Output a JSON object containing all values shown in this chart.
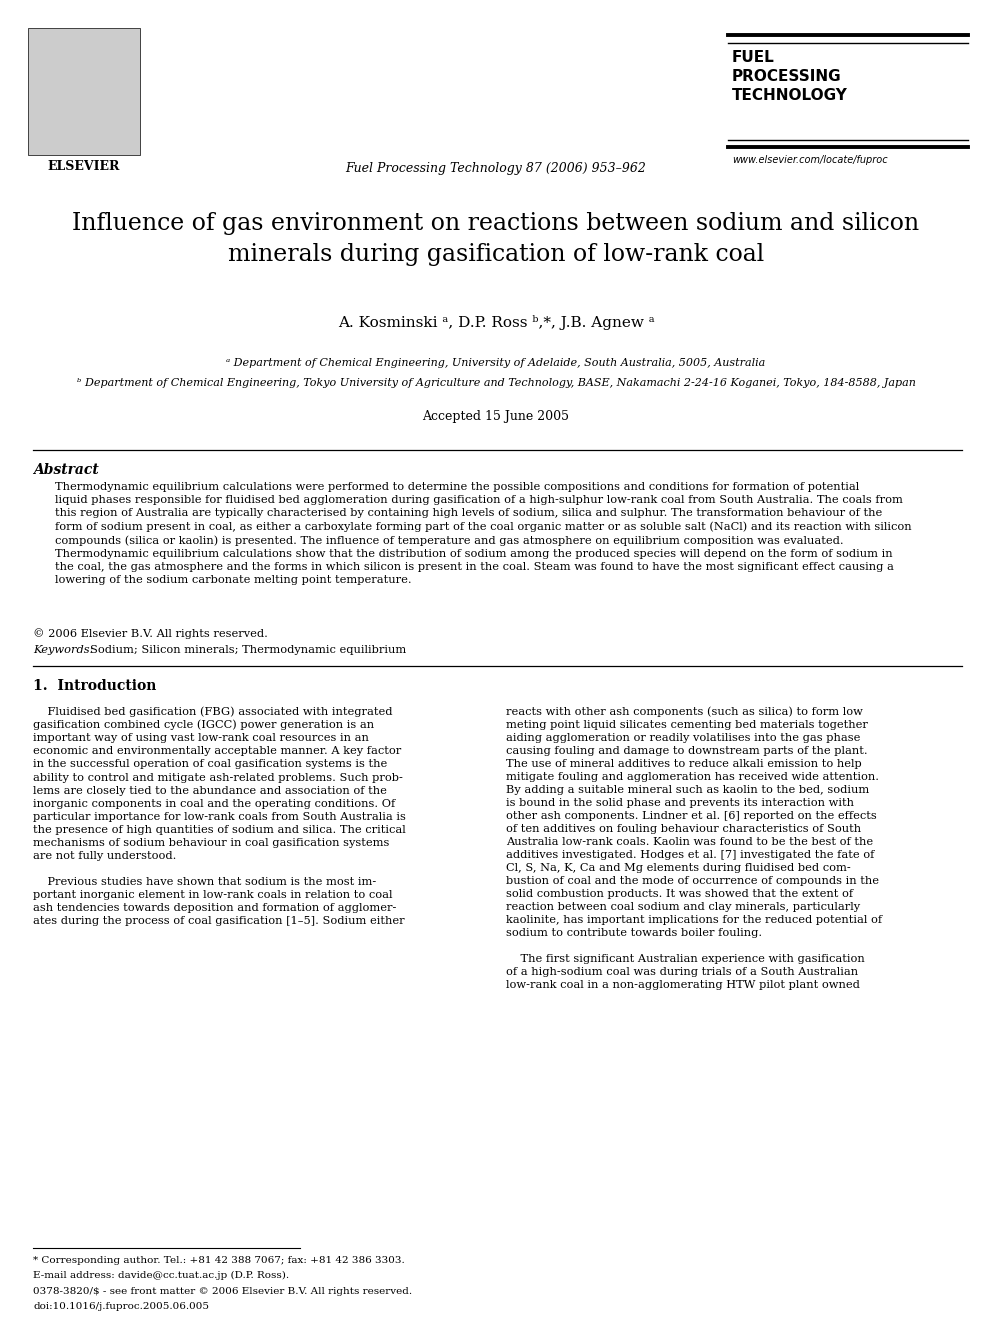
{
  "page_width": 9.92,
  "page_height": 13.23,
  "background_color": "#ffffff",
  "header_journal": "Fuel Processing Technology 87 (2006) 953–962",
  "header_journal_fontsize": 9,
  "elsevier_text": "ELSEVIER",
  "fuel_processing": "FUEL\nPROCESSING\nTECHNOLOGY",
  "fuel_processing_fontsize": 11,
  "website": "www.elsevier.com/locate/fuproc",
  "website_fontsize": 7,
  "title": "Influence of gas environment on reactions between sodium and silicon\nminerals during gasification of low-rank coal",
  "title_fontsize": 17,
  "authors": "A. Kosminski ᵃ, D.P. Ross ᵇ,*, J.B. Agnew ᵃ",
  "authors_fontsize": 11,
  "affil_a": "ᵃ Department of Chemical Engineering, University of Adelaide, South Australia, 5005, Australia",
  "affil_b": "ᵇ Department of Chemical Engineering, Tokyo University of Agriculture and Technology, BASE, Nakamachi 2-24-16 Koganei, Tokyo, 184-8588, Japan",
  "affil_fontsize": 8,
  "accepted": "Accepted 15 June 2005",
  "accepted_fontsize": 9,
  "abstract_title": "Abstract",
  "abstract_title_fontsize": 10,
  "abstract_text": "Thermodynamic equilibrium calculations were performed to determine the possible compositions and conditions for formation of potential\nliquid phases responsible for fluidised bed agglomeration during gasification of a high-sulphur low-rank coal from South Australia. The coals from\nthis region of Australia are typically characterised by containing high levels of sodium, silica and sulphur. The transformation behaviour of the\nform of sodium present in coal, as either a carboxylate forming part of the coal organic matter or as soluble salt (NaCl) and its reaction with silicon\ncompounds (silica or kaolin) is presented. The influence of temperature and gas atmosphere on equilibrium composition was evaluated.\nThermodynamic equilibrium calculations show that the distribution of sodium among the produced species will depend on the form of sodium in\nthe coal, the gas atmosphere and the forms in which silicon is present in the coal. Steam was found to have the most significant effect causing a\nlowering of the sodium carbonate melting point temperature.",
  "abstract_text_fontsize": 8.2,
  "copyright": "© 2006 Elsevier B.V. All rights reserved.",
  "copyright_fontsize": 8.2,
  "keywords_label": "Keywords:",
  "keywords_text": "Sodium; Silicon minerals; Thermodynamic equilibrium",
  "keywords_fontsize": 8.2,
  "section1_title": "1.  Introduction",
  "section1_title_fontsize": 10,
  "col1_para1": "    Fluidised bed gasification (FBG) associated with integrated\ngasification combined cycle (IGCC) power generation is an\nimportant way of using vast low-rank coal resources in an\neconomic and environmentally acceptable manner. A key factor\nin the successful operation of coal gasification systems is the\nability to control and mitigate ash-related problems. Such prob-\nlems are closely tied to the abundance and association of the\ninorganic components in coal and the operating conditions. Of\nparticular importance for low-rank coals from South Australia is\nthe presence of high quantities of sodium and silica. The critical\nmechanisms of sodium behaviour in coal gasification systems\nare not fully understood.",
  "col1_para2": "    Previous studies have shown that sodium is the most im-\nportant inorganic element in low-rank coals in relation to coal\nash tendencies towards deposition and formation of agglomer-\nates during the process of coal gasification [1–5]. Sodium either",
  "col2_para1": "reacts with other ash components (such as silica) to form low\nmeting point liquid silicates cementing bed materials together\naiding agglomeration or readily volatilises into the gas phase\ncausing fouling and damage to downstream parts of the plant.\nThe use of mineral additives to reduce alkali emission to help\nmitigate fouling and agglomeration has received wide attention.\nBy adding a suitable mineral such as kaolin to the bed, sodium\nis bound in the solid phase and prevents its interaction with\nother ash components. Lindner et al. [6] reported on the effects\nof ten additives on fouling behaviour characteristics of South\nAustralia low-rank coals. Kaolin was found to be the best of the\nadditives investigated. Hodges et al. [7] investigated the fate of\nCl, S, Na, K, Ca and Mg elements during fluidised bed com-\nbustion of coal and the mode of occurrence of compounds in the\nsolid combustion products. It was showed that the extent of\nreaction between coal sodium and clay minerals, particularly\nkaolinite, has important implications for the reduced potential of\nsodium to contribute towards boiler fouling.",
  "col2_para2": "    The first significant Australian experience with gasification\nof a high-sodium coal was during trials of a South Australian\nlow-rank coal in a non-agglomerating HTW pilot plant owned",
  "col_text_fontsize": 8.2,
  "footnote_star": "* Corresponding author. Tel.: +81 42 388 7067; fax: +81 42 386 3303.",
  "footnote_email": "E-mail address: davide@cc.tuat.ac.jp (D.P. Ross).",
  "footnote_issn": "0378-3820/$ - see front matter © 2006 Elsevier B.V. All rights reserved.",
  "footnote_doi": "doi:10.1016/j.fuproc.2005.06.005",
  "footnote_fontsize": 7.5
}
